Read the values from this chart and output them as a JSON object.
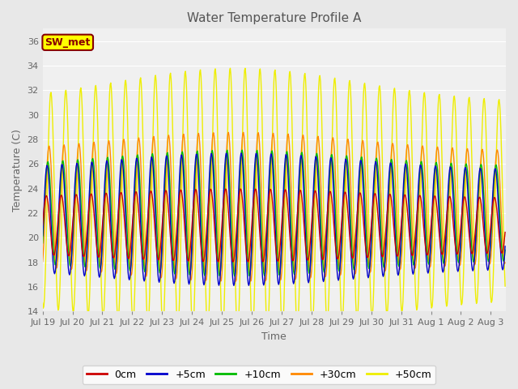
{
  "title": "Water Temperature Profile A",
  "xlabel": "Time",
  "ylabel": "Temperature (C)",
  "ylim": [
    14,
    37
  ],
  "yticks": [
    14,
    16,
    18,
    20,
    22,
    24,
    26,
    28,
    30,
    32,
    34,
    36
  ],
  "background_color": "#e8e8e8",
  "plot_bg_color": "#f0f0f0",
  "legend_label": "SW_met",
  "legend_bg": "#ffff00",
  "legend_border": "#880000",
  "series_colors": [
    "#cc0000",
    "#0000cc",
    "#00bb00",
    "#ff8800",
    "#eeee00"
  ],
  "series_labels": [
    "0cm",
    "+5cm",
    "+10cm",
    "+30cm",
    "+50cm"
  ],
  "num_days": 15.5,
  "tick_labels": [
    "Jul 19",
    "Jul 20",
    "Jul 21",
    "Jul 22",
    "Jul 23",
    "Jul 24",
    "Jul 25",
    "Jul 26",
    "Jul 27",
    "Jul 28",
    "Jul 29",
    "Jul 30",
    "Jul 31",
    "Aug 1",
    "Aug 2",
    "Aug 3"
  ],
  "title_fontsize": 11,
  "label_fontsize": 9,
  "tick_fontsize": 8
}
